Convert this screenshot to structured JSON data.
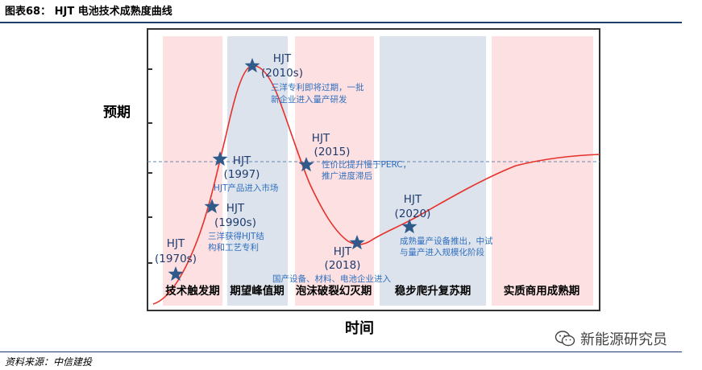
{
  "header": {
    "title": "图表68： HJT 电池技术成熟度曲线"
  },
  "axes": {
    "y_label": "预期",
    "x_label": "时间"
  },
  "phases": [
    {
      "label": "技术触发期",
      "color": "#fde0e1"
    },
    {
      "label": "期望峰值期",
      "color": "#dde3ec"
    },
    {
      "label": "泡沫破裂幻灭期",
      "color": "#fde0e1"
    },
    {
      "label": "稳步爬升复苏期",
      "color": "#dde3ec"
    },
    {
      "label": "实质商用成熟期",
      "color": "#fde0e1"
    }
  ],
  "events": [
    {
      "name": "HJT",
      "year": "(1970s)",
      "desc": []
    },
    {
      "name": "HJT",
      "year": "(1990s)",
      "desc": [
        "三洋获得HJT结",
        "构和工艺专利"
      ]
    },
    {
      "name": "HJT",
      "year": "(1997)",
      "desc": [
        "HJT产品进入市场"
      ]
    },
    {
      "name": "HJT",
      "year": "(2010s)",
      "desc": [
        "三洋专利即将过期，一批",
        "新企业进入量产研发"
      ]
    },
    {
      "name": "HJT",
      "year": "(2015)",
      "desc": [
        "性价比提升慢于PERC，",
        "推广进度滞后"
      ]
    },
    {
      "name": "HJT",
      "year": "(2018)",
      "desc": [
        "国产设备、材料、电池企业进入"
      ]
    },
    {
      "name": "HJT",
      "year": "(2020)",
      "desc": [
        "成熟量产设备推出，中试",
        "与量产进入规模化阶段"
      ]
    }
  ],
  "colors": {
    "curve": "#e8302a",
    "star": "#2f5a8a",
    "axis": "#333333",
    "text_dark": "#1f3c6e",
    "text_blue": "#2f6fbf"
  },
  "footer": {
    "source": "资料来源：中信建投",
    "watermark": "新能源研究员",
    "watermark_icon": "wechat-icon"
  }
}
